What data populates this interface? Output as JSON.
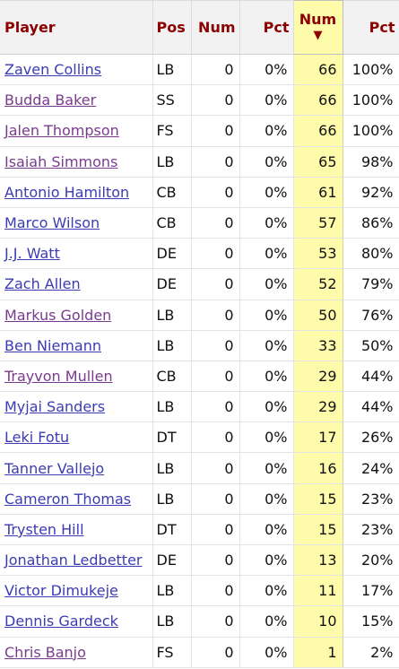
{
  "table": {
    "headers": {
      "player": "Player",
      "pos": "Pos",
      "num1": "Num",
      "pct1": "Pct",
      "num2": "Num",
      "sort_arrow": "▼",
      "pct2": "Pct"
    },
    "rows": [
      {
        "player": "Zaven Collins",
        "pos": "LB",
        "num1": "0",
        "pct1": "0%",
        "num2": "66",
        "pct2": "100%",
        "visited": false
      },
      {
        "player": "Budda Baker",
        "pos": "SS",
        "num1": "0",
        "pct1": "0%",
        "num2": "66",
        "pct2": "100%",
        "visited": true
      },
      {
        "player": "Jalen Thompson",
        "pos": "FS",
        "num1": "0",
        "pct1": "0%",
        "num2": "66",
        "pct2": "100%",
        "visited": true
      },
      {
        "player": "Isaiah Simmons",
        "pos": "LB",
        "num1": "0",
        "pct1": "0%",
        "num2": "65",
        "pct2": "98%",
        "visited": true
      },
      {
        "player": "Antonio Hamilton",
        "pos": "CB",
        "num1": "0",
        "pct1": "0%",
        "num2": "61",
        "pct2": "92%",
        "visited": false
      },
      {
        "player": "Marco Wilson",
        "pos": "CB",
        "num1": "0",
        "pct1": "0%",
        "num2": "57",
        "pct2": "86%",
        "visited": false
      },
      {
        "player": "J.J. Watt",
        "pos": "DE",
        "num1": "0",
        "pct1": "0%",
        "num2": "53",
        "pct2": "80%",
        "visited": false
      },
      {
        "player": "Zach Allen",
        "pos": "DE",
        "num1": "0",
        "pct1": "0%",
        "num2": "52",
        "pct2": "79%",
        "visited": false
      },
      {
        "player": "Markus Golden",
        "pos": "LB",
        "num1": "0",
        "pct1": "0%",
        "num2": "50",
        "pct2": "76%",
        "visited": true
      },
      {
        "player": "Ben Niemann",
        "pos": "LB",
        "num1": "0",
        "pct1": "0%",
        "num2": "33",
        "pct2": "50%",
        "visited": false
      },
      {
        "player": "Trayvon Mullen",
        "pos": "CB",
        "num1": "0",
        "pct1": "0%",
        "num2": "29",
        "pct2": "44%",
        "visited": true
      },
      {
        "player": "Myjai Sanders",
        "pos": "LB",
        "num1": "0",
        "pct1": "0%",
        "num2": "29",
        "pct2": "44%",
        "visited": false
      },
      {
        "player": "Leki Fotu",
        "pos": "DT",
        "num1": "0",
        "pct1": "0%",
        "num2": "17",
        "pct2": "26%",
        "visited": false
      },
      {
        "player": "Tanner Vallejo",
        "pos": "LB",
        "num1": "0",
        "pct1": "0%",
        "num2": "16",
        "pct2": "24%",
        "visited": false
      },
      {
        "player": "Cameron Thomas",
        "pos": "LB",
        "num1": "0",
        "pct1": "0%",
        "num2": "15",
        "pct2": "23%",
        "visited": false
      },
      {
        "player": "Trysten Hill",
        "pos": "DT",
        "num1": "0",
        "pct1": "0%",
        "num2": "15",
        "pct2": "23%",
        "visited": false
      },
      {
        "player": "Jonathan Ledbetter",
        "pos": "DE",
        "num1": "0",
        "pct1": "0%",
        "num2": "13",
        "pct2": "20%",
        "visited": false
      },
      {
        "player": "Victor Dimukeje",
        "pos": "LB",
        "num1": "0",
        "pct1": "0%",
        "num2": "11",
        "pct2": "17%",
        "visited": false
      },
      {
        "player": "Dennis Gardeck",
        "pos": "LB",
        "num1": "0",
        "pct1": "0%",
        "num2": "10",
        "pct2": "15%",
        "visited": false
      },
      {
        "player": "Chris Banjo",
        "pos": "FS",
        "num1": "0",
        "pct1": "0%",
        "num2": "1",
        "pct2": "2%",
        "visited": true
      }
    ]
  },
  "colors": {
    "header_text": "#8b0000",
    "link": "#3b3bb3",
    "link_visited": "#7a3b8f",
    "sorted_column_bg": "#fefbaa"
  }
}
